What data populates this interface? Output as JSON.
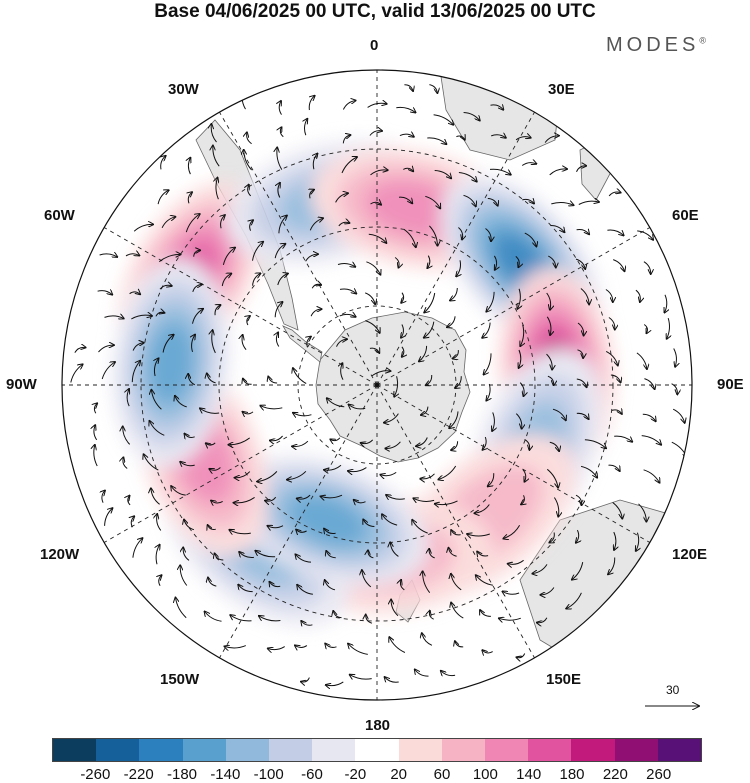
{
  "title": "Base 04/06/2025 00 UTC, valid 13/06/2025 00 UTC",
  "brand": "MODES",
  "brand_mark": "®",
  "longitude_labels": [
    "0",
    "30E",
    "60E",
    "90E",
    "120E",
    "150E",
    "180",
    "150W",
    "120W",
    "90W",
    "60W",
    "30W"
  ],
  "vector_reference": "30",
  "colorbar": {
    "ticks": [
      "-260",
      "-220",
      "-180",
      "-140",
      "-100",
      "-60",
      "-20",
      "20",
      "60",
      "100",
      "140",
      "180",
      "220",
      "260"
    ],
    "colors": [
      "#0d3d5e",
      "#15609a",
      "#2b80bd",
      "#5aa0cf",
      "#90b9dc",
      "#c3cde6",
      "#e7e7f2",
      "#ffffff",
      "#fbdada",
      "#f6b3c4",
      "#ef86b4",
      "#e2539f",
      "#c2197c",
      "#8f1072",
      "#581277"
    ]
  },
  "anomaly_centers": [
    {
      "lon": 300,
      "lat": -42,
      "value": 170
    },
    {
      "lon": 345,
      "lat": -48,
      "value": -120
    },
    {
      "lon": 12,
      "lat": -50,
      "value": 110
    },
    {
      "lon": 50,
      "lat": -48,
      "value": -210
    },
    {
      "lon": 86,
      "lat": -50,
      "value": 180
    },
    {
      "lon": 112,
      "lat": -52,
      "value": -110
    },
    {
      "lon": 140,
      "lat": -52,
      "value": 90
    },
    {
      "lon": 176,
      "lat": -52,
      "value": 80
    },
    {
      "lon": 216,
      "lat": -45,
      "value": -130
    },
    {
      "lon": 200,
      "lat": -58,
      "value": -140
    },
    {
      "lon": 248,
      "lat": -48,
      "value": 120
    },
    {
      "lon": 276,
      "lat": -44,
      "value": -170
    }
  ]
}
